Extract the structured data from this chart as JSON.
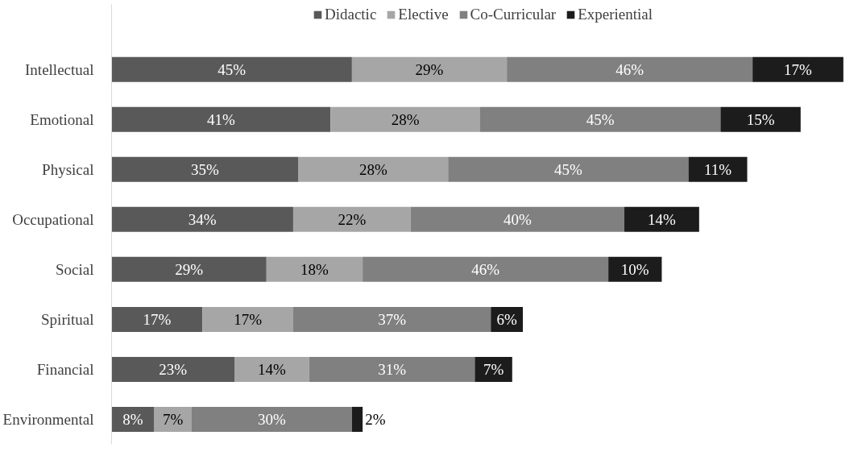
{
  "chart_data": {
    "type": "bar",
    "orientation": "horizontal",
    "stacked": true,
    "legend": "top",
    "grid": false,
    "categories": [
      "Intellectual",
      "Emotional",
      "Physical",
      "Occupational",
      "Social",
      "Spiritual",
      "Financial",
      "Environmental"
    ],
    "series": [
      {
        "name": "Didactic",
        "color": "#595959",
        "values": [
          45,
          41,
          35,
          34,
          29,
          17,
          23,
          8
        ],
        "value_labels": [
          "45%",
          "41%",
          "35%",
          "34%",
          "29%",
          "17%",
          "23%",
          "8%"
        ]
      },
      {
        "name": "Elective",
        "color": "#a6a6a6",
        "values": [
          29,
          28,
          28,
          22,
          18,
          17,
          14,
          7
        ],
        "value_labels": [
          "29%",
          "28%",
          "28%",
          "22%",
          "18%",
          "17%",
          "14%",
          "7%"
        ]
      },
      {
        "name": "Co-Curricular",
        "color": "#808080",
        "values": [
          46,
          45,
          45,
          40,
          46,
          37,
          31,
          30
        ],
        "value_labels": [
          "46%",
          "45%",
          "45%",
          "40%",
          "46%",
          "37%",
          "31%",
          "30%"
        ]
      },
      {
        "name": "Experiential",
        "color": "#1c1c1c",
        "values": [
          17,
          15,
          11,
          14,
          10,
          6,
          7,
          2
        ],
        "value_labels": [
          "17%",
          "15%",
          "11%",
          "14%",
          "10%",
          "6%",
          "7%",
          "2%"
        ]
      }
    ]
  }
}
